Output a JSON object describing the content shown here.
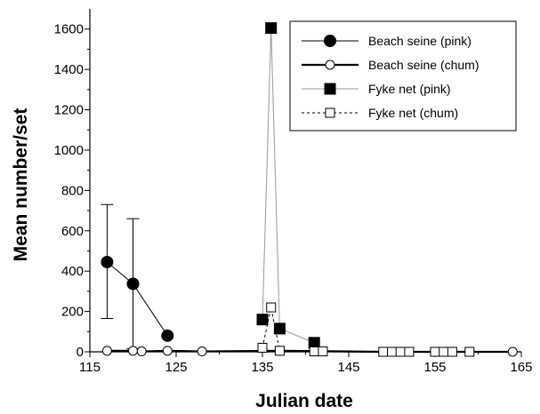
{
  "chart_data": {
    "type": "line",
    "title": "",
    "xlabel": "Julian date",
    "ylabel": "Mean number/set",
    "xlim": [
      115,
      165
    ],
    "ylim": [
      0,
      1700
    ],
    "x_ticks": [
      115,
      125,
      135,
      145,
      155,
      165
    ],
    "x_tick_labels": [
      "115",
      "125",
      "135",
      "145",
      "155",
      "165"
    ],
    "y_ticks": [
      0,
      200,
      400,
      600,
      800,
      1000,
      1200,
      1400,
      1600
    ],
    "y_tick_labels": [
      "0",
      "200",
      "400",
      "600",
      "800",
      "1000",
      "1200",
      "1400",
      "1600"
    ],
    "grid": false,
    "legend_position": "top-right",
    "series": [
      {
        "name": "Beach seine (pink)",
        "marker": "filled-circle",
        "line": "solid-thin",
        "color": "#000000",
        "x": [
          117,
          120,
          124
        ],
        "y": [
          445,
          337,
          80
        ],
        "error_upper": [
          730,
          660,
          null
        ],
        "error_lower": [
          165,
          15,
          null
        ]
      },
      {
        "name": "Beach seine (chum)",
        "marker": "open-circle",
        "line": "solid-thick",
        "color": "#000000",
        "x": [
          117,
          120,
          121,
          124,
          128,
          137,
          149,
          164
        ],
        "y": [
          5,
          5,
          2,
          5,
          2,
          5,
          0,
          0
        ]
      },
      {
        "name": "Fyke net (pink)",
        "marker": "filled-square",
        "line": "solid-gray",
        "color": "#999999",
        "x": [
          135,
          136,
          137,
          141
        ],
        "y": [
          160,
          1605,
          115,
          45
        ]
      },
      {
        "name": "Fyke net (chum)",
        "marker": "open-square",
        "line": "dashed",
        "color": "#000000",
        "x": [
          135,
          136,
          137,
          141,
          142,
          149,
          150,
          151,
          152,
          155,
          156,
          157,
          159
        ],
        "y": [
          20,
          220,
          5,
          2,
          2,
          0,
          0,
          0,
          0,
          0,
          0,
          0,
          0
        ]
      }
    ]
  }
}
